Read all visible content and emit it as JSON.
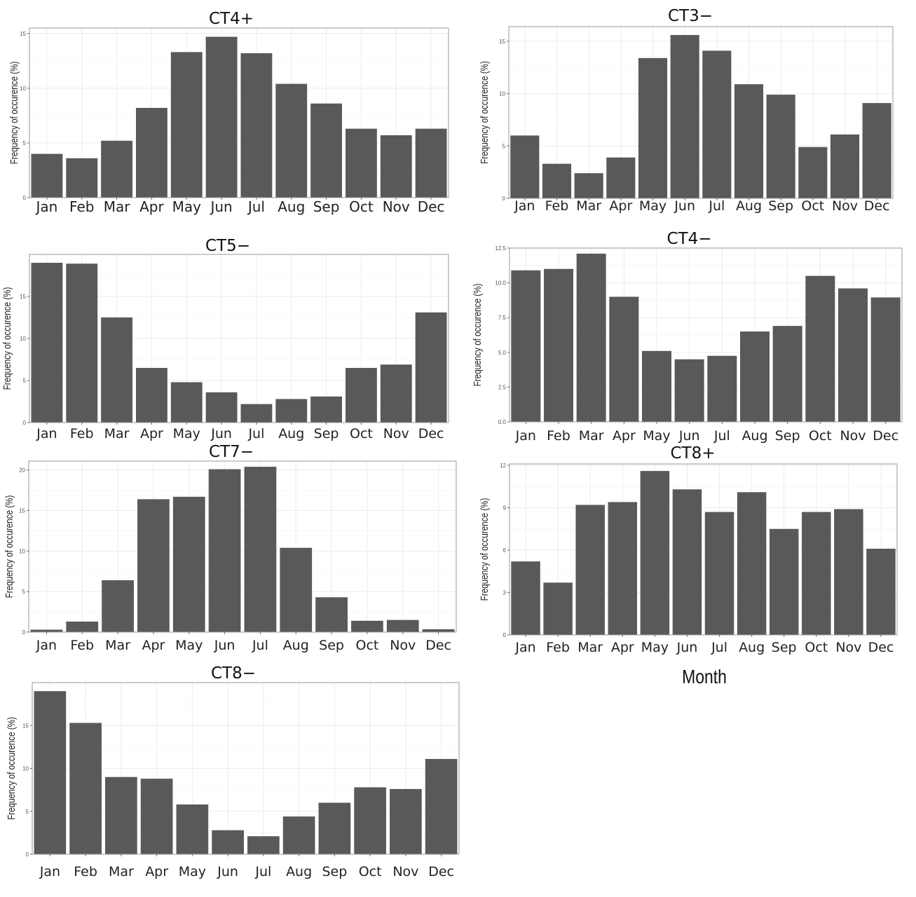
{
  "figure": {
    "x_axis_label": "Month"
  },
  "colors": {
    "bar": "#595959",
    "grid": "#ebebeb",
    "frame": "#9a9a9a",
    "text": "#222222"
  },
  "chart_data": [
    {
      "type": "bar",
      "title": "CT4+",
      "xlabel": "",
      "ylabel": "Frequency of occurence (%)",
      "categories": [
        "Jan",
        "Feb",
        "Mar",
        "Apr",
        "May",
        "Jun",
        "Jul",
        "Aug",
        "Sep",
        "Oct",
        "Nov",
        "Dec"
      ],
      "values": [
        4.0,
        3.6,
        5.2,
        8.2,
        13.3,
        14.7,
        13.2,
        10.4,
        8.6,
        6.3,
        5.7,
        6.3
      ],
      "ylim": [
        0,
        15.5
      ],
      "yticks": [
        0,
        5,
        10,
        15
      ],
      "ytick_labels": [
        "0",
        "5",
        "10",
        "15"
      ],
      "grid": true
    },
    {
      "type": "bar",
      "title": "CT3−",
      "xlabel": "",
      "ylabel": "Frequency of occurence (%)",
      "categories": [
        "Jan",
        "Feb",
        "Mar",
        "Apr",
        "May",
        "Jun",
        "Jul",
        "Aug",
        "Sep",
        "Oct",
        "Nov",
        "Dec"
      ],
      "values": [
        6.0,
        3.3,
        2.4,
        3.9,
        13.4,
        15.6,
        14.1,
        10.9,
        9.9,
        4.9,
        6.1,
        9.1
      ],
      "ylim": [
        0,
        16.4
      ],
      "yticks": [
        0,
        5,
        10,
        15
      ],
      "ytick_labels": [
        "0",
        "5",
        "10",
        "15"
      ],
      "grid": true
    },
    {
      "type": "bar",
      "title": "CT5−",
      "xlabel": "",
      "ylabel": "Frequency of occurence (%)",
      "categories": [
        "Jan",
        "Feb",
        "Mar",
        "Apr",
        "May",
        "Jun",
        "Jul",
        "Aug",
        "Sep",
        "Oct",
        "Nov",
        "Dec"
      ],
      "values": [
        19.0,
        18.9,
        12.5,
        6.5,
        4.8,
        3.6,
        2.2,
        2.8,
        3.1,
        6.5,
        6.9,
        13.1
      ],
      "ylim": [
        0,
        20.0
      ],
      "yticks": [
        0,
        5,
        10,
        15
      ],
      "ytick_labels": [
        "0",
        "5",
        "10",
        "15"
      ],
      "grid": true
    },
    {
      "type": "bar",
      "title": "CT4−",
      "xlabel": "",
      "ylabel": "Frequency of occurence (%)",
      "categories": [
        "Jan",
        "Feb",
        "Mar",
        "Apr",
        "May",
        "Jun",
        "Jul",
        "Aug",
        "Sep",
        "Oct",
        "Nov",
        "Dec"
      ],
      "values": [
        10.9,
        11.0,
        12.1,
        9.0,
        5.1,
        4.5,
        4.75,
        6.5,
        6.9,
        10.5,
        9.6,
        8.95
      ],
      "ylim": [
        0,
        12.5
      ],
      "yticks": [
        0,
        2.5,
        5,
        7.5,
        10,
        12.5
      ],
      "ytick_labels": [
        "0.0",
        "2.5",
        "5.0",
        "7.5",
        "10.0",
        "12.5"
      ],
      "grid": true
    },
    {
      "type": "bar",
      "title": "CT7−",
      "xlabel": "",
      "ylabel": "Frequency of occurence (%)",
      "categories": [
        "Jan",
        "Feb",
        "Mar",
        "Apr",
        "May",
        "Jun",
        "Jul",
        "Aug",
        "Sep",
        "Oct",
        "Nov",
        "Dec"
      ],
      "values": [
        0.3,
        1.3,
        6.4,
        16.4,
        16.7,
        20.1,
        20.4,
        10.4,
        4.3,
        1.4,
        1.5,
        0.35
      ],
      "ylim": [
        0,
        21.1
      ],
      "yticks": [
        0,
        5,
        10,
        15,
        20
      ],
      "ytick_labels": [
        "0",
        "5",
        "10",
        "15",
        "20"
      ],
      "grid": true
    },
    {
      "type": "bar",
      "title": "CT8+",
      "xlabel": "",
      "ylabel": "Frequency of occurence (%)",
      "categories": [
        "Jan",
        "Feb",
        "Mar",
        "Apr",
        "May",
        "Jun",
        "Jul",
        "Aug",
        "Sep",
        "Oct",
        "Nov",
        "Dec"
      ],
      "values": [
        5.2,
        3.7,
        9.2,
        9.4,
        11.6,
        10.3,
        8.7,
        10.1,
        7.5,
        8.7,
        8.9,
        6.1
      ],
      "ylim": [
        0,
        12.1
      ],
      "yticks": [
        0,
        3,
        6,
        9,
        12
      ],
      "ytick_labels": [
        "0",
        "3",
        "6",
        "9",
        "12"
      ],
      "grid": true
    },
    {
      "type": "bar",
      "title": "CT8−",
      "xlabel": "",
      "ylabel": "Frequency of occurence (%)",
      "categories": [
        "Jan",
        "Feb",
        "Mar",
        "Apr",
        "May",
        "Jun",
        "Jul",
        "Aug",
        "Sep",
        "Oct",
        "Nov",
        "Dec"
      ],
      "values": [
        19.0,
        15.3,
        9.0,
        8.8,
        5.8,
        2.8,
        2.1,
        4.4,
        6.0,
        7.8,
        7.6,
        11.1
      ],
      "ylim": [
        0,
        20.0
      ],
      "yticks": [
        0,
        5,
        10,
        15
      ],
      "ytick_labels": [
        "0",
        "5",
        "10",
        "15"
      ],
      "grid": true
    }
  ]
}
